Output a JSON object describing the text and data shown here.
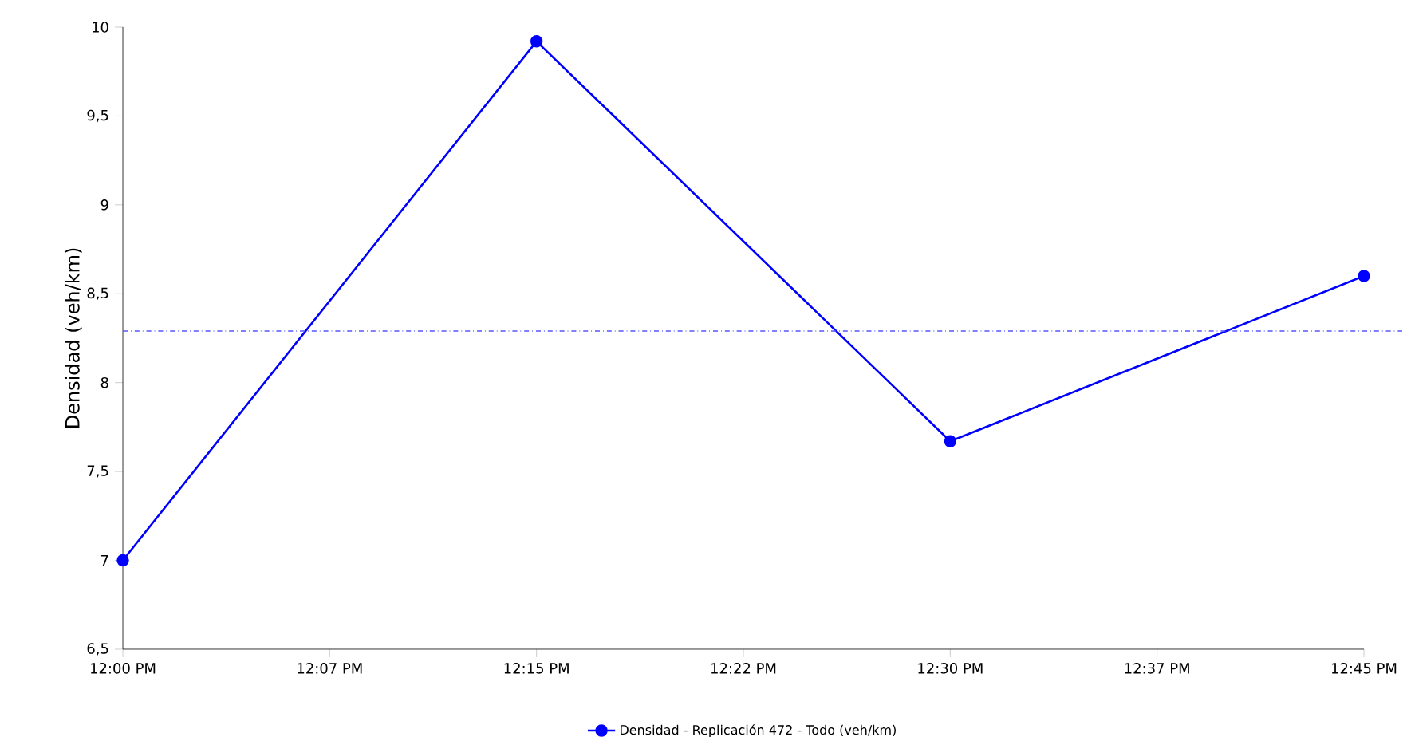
{
  "chart_data": {
    "type": "line",
    "ylabel": "Densidad (veh/km)",
    "x": [
      12,
      12.25,
      12.5,
      12.75
    ],
    "series": [
      {
        "name": "Densidad - Replicación 472 - Todo (veh/km)",
        "color": "#0000ff",
        "values": [
          7.0,
          9.92,
          7.67,
          8.6
        ]
      }
    ],
    "xlim": [
      12,
      12.75
    ],
    "xticks": [
      {
        "value": 12,
        "label": "12:00 PM"
      },
      {
        "value": 12.125,
        "label": "12:07 PM"
      },
      {
        "value": 12.25,
        "label": "12:15 PM"
      },
      {
        "value": 12.375,
        "label": "12:22 PM"
      },
      {
        "value": 12.5,
        "label": "12:30 PM"
      },
      {
        "value": 12.625,
        "label": "12:37 PM"
      },
      {
        "value": 12.75,
        "label": "12:45 PM"
      }
    ],
    "ylim": [
      6.5,
      10
    ],
    "yticks": [
      {
        "value": 6.5,
        "label": "6,5"
      },
      7,
      {
        "value": 7.5,
        "label": "7,5"
      },
      8,
      {
        "value": 8.5,
        "label": "8,5"
      },
      9,
      {
        "value": 9.5,
        "label": "9,5"
      },
      10
    ],
    "ref_lines": [
      {
        "axis": "y",
        "value": 8.29,
        "color": "#5555ff",
        "line_style": "dashdot"
      }
    ],
    "grid": false,
    "legend": "bottom",
    "marker": "circle",
    "line_style": "solid"
  }
}
